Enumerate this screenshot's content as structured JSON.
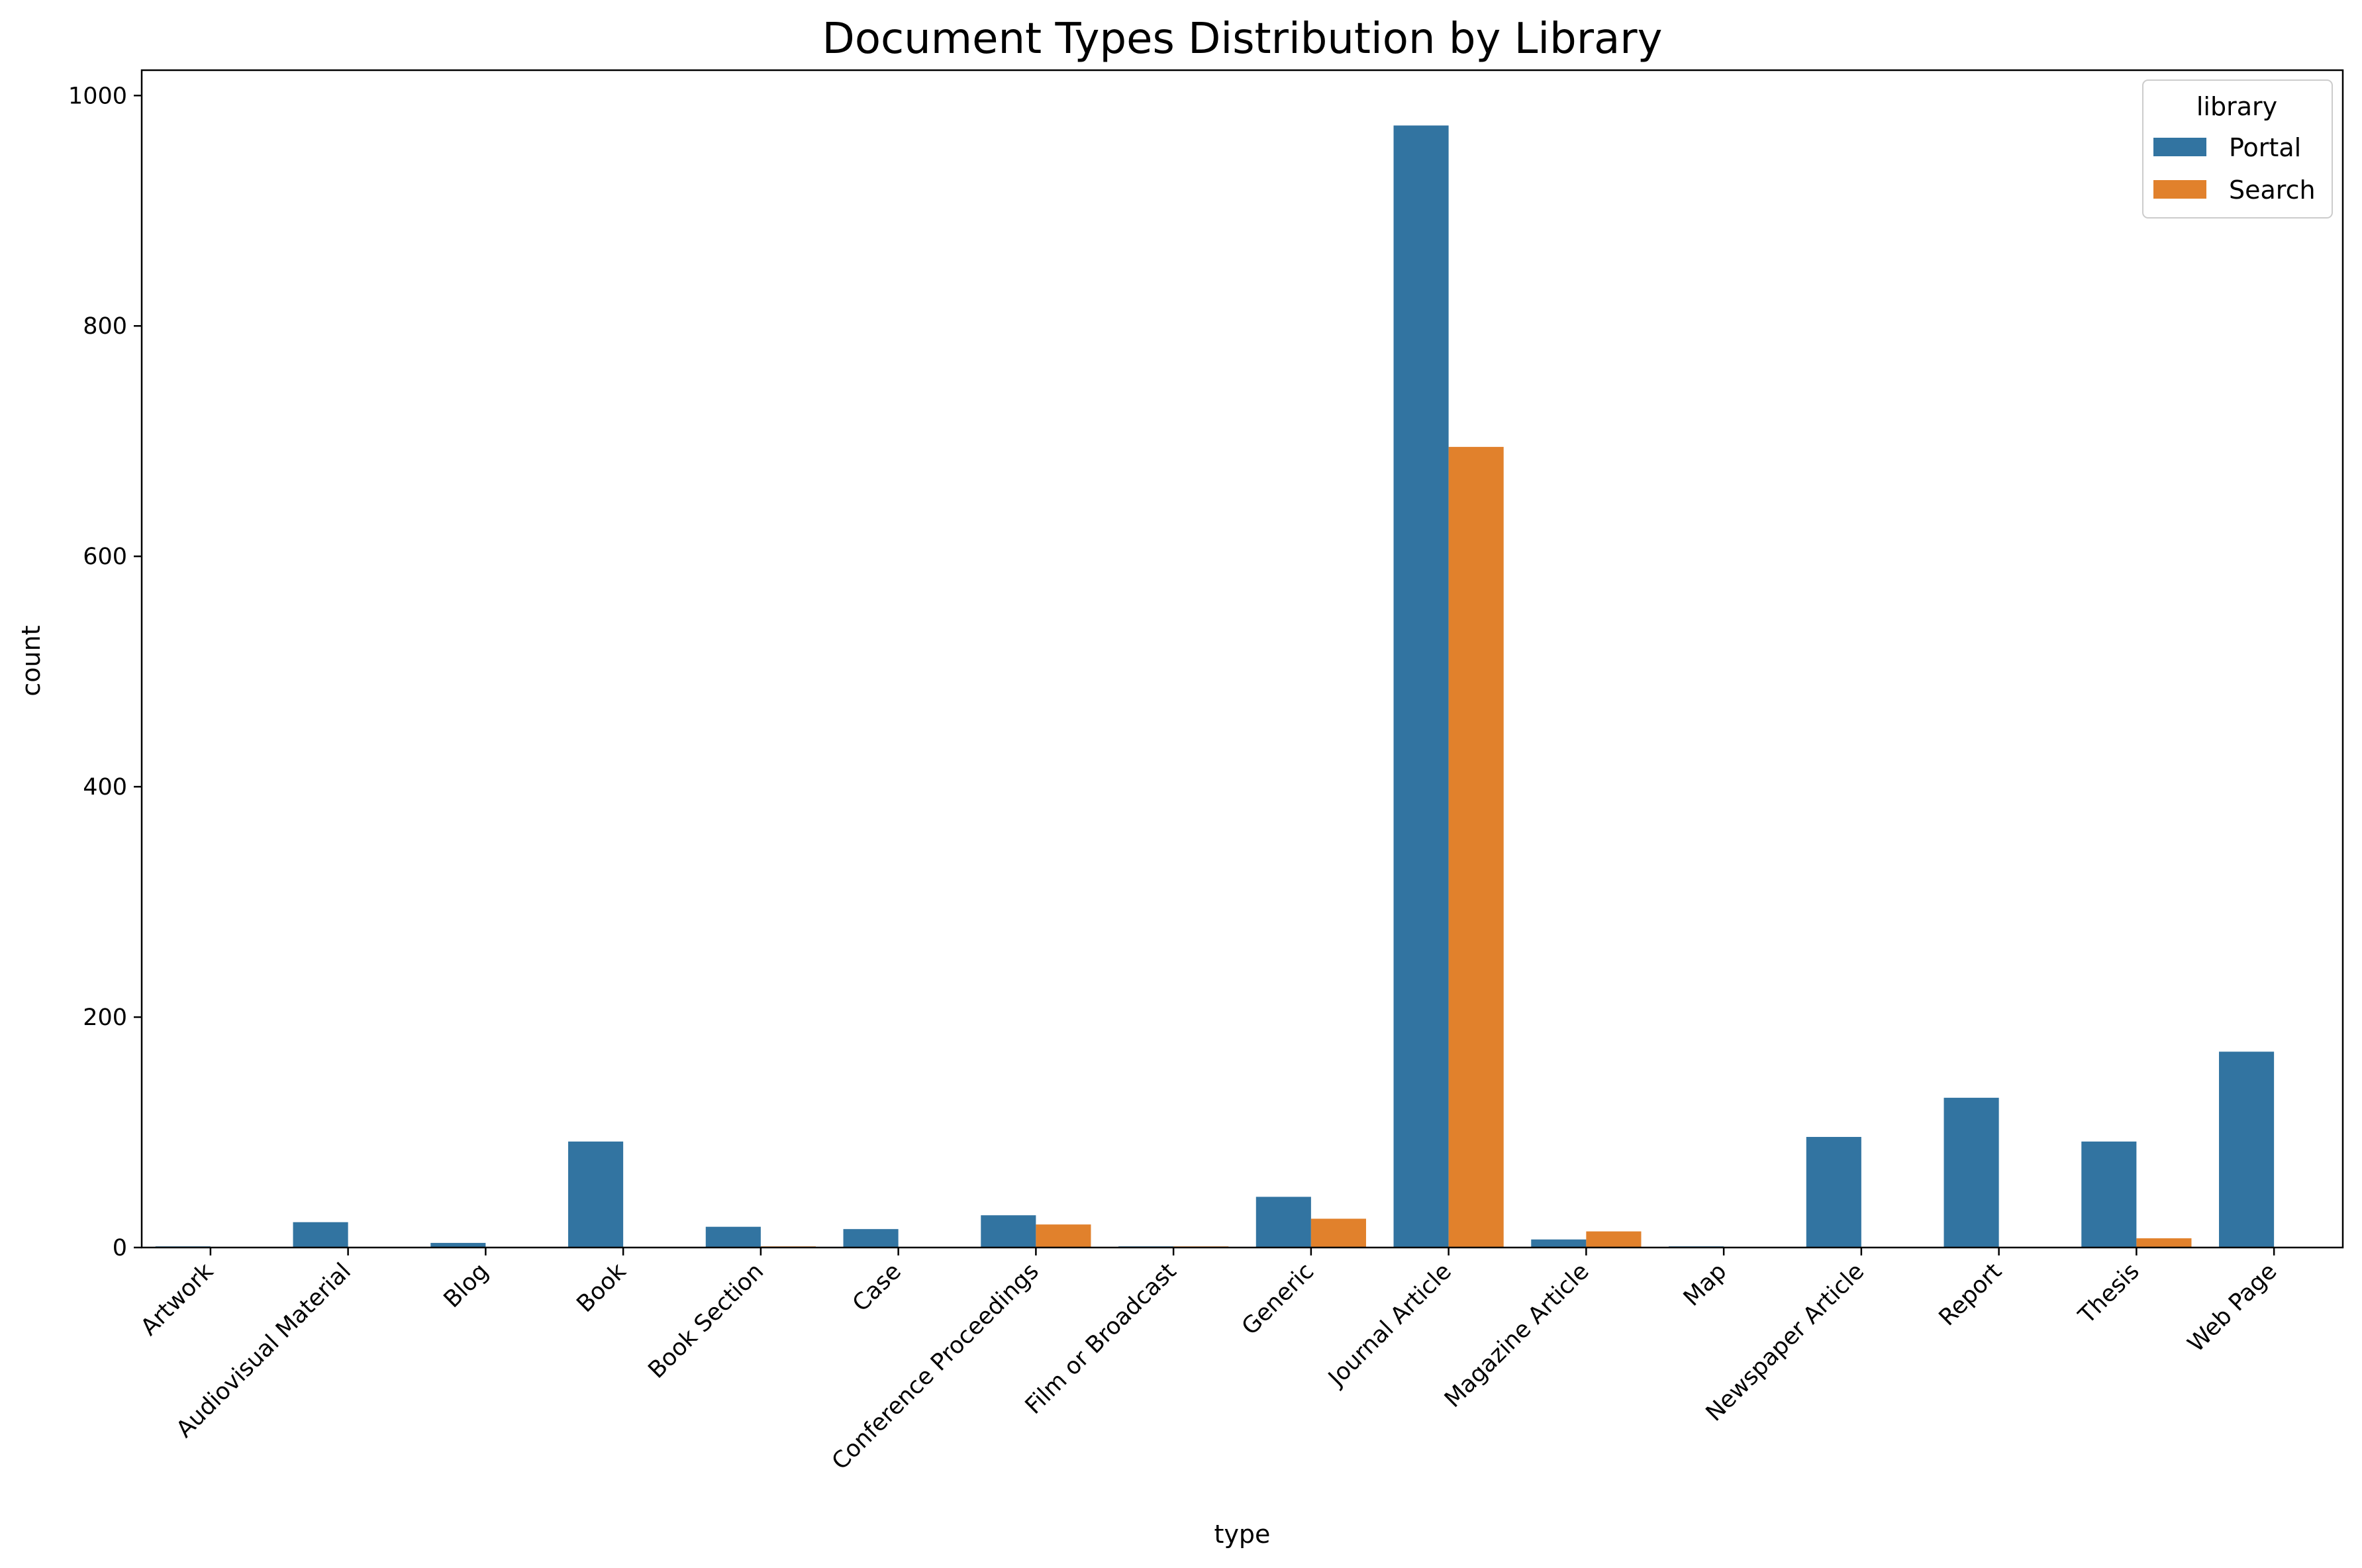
{
  "colors": {
    "portal": "#3274a1",
    "search": "#e1812c"
  },
  "chart_data": {
    "type": "bar",
    "title": "Document Types Distribution by Library",
    "xlabel": "type",
    "ylabel": "count",
    "ylim": [
      0,
      1022
    ],
    "yticks": [
      0,
      200,
      400,
      600,
      800,
      1000
    ],
    "categories": [
      "Artwork",
      "Audiovisual Material",
      "Blog",
      "Book",
      "Book Section",
      "Case",
      "Conference Proceedings",
      "Film or Broadcast",
      "Generic",
      "Journal Article",
      "Magazine Article",
      "Map",
      "Newspaper Article",
      "Report",
      "Thesis",
      "Web Page"
    ],
    "series": [
      {
        "name": "Portal",
        "color": "#3274a1",
        "values": [
          1,
          22,
          4,
          92,
          18,
          16,
          28,
          1,
          44,
          974,
          7,
          1,
          96,
          130,
          92,
          170
        ]
      },
      {
        "name": "Search",
        "color": "#e1812c",
        "values": [
          0,
          0,
          0,
          0,
          1,
          0,
          20,
          1,
          25,
          695,
          14,
          0,
          0,
          0,
          8,
          0
        ]
      }
    ],
    "legend": {
      "title": "library",
      "position": "top-right"
    },
    "grid": false
  }
}
